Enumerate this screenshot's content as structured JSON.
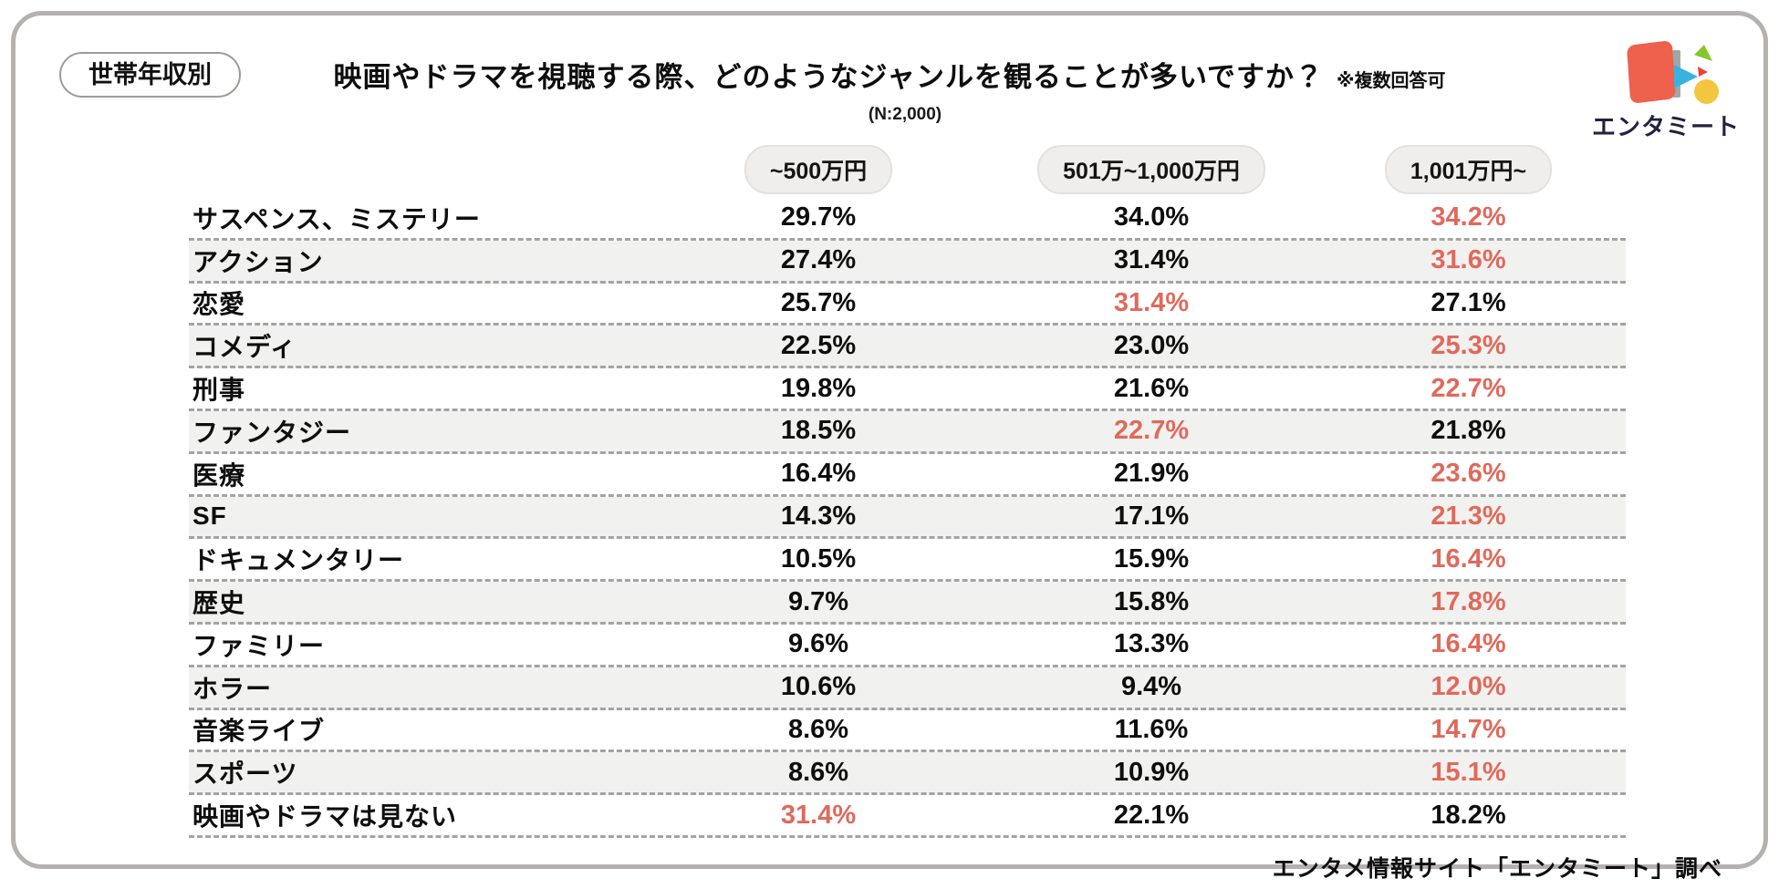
{
  "badge": "世帯年収別",
  "header": {
    "title": "映画やドラマを視聴する際、どのようなジャンルを観ることが多いですか？",
    "note": "※複数回答可",
    "sample": "(N:2,000)"
  },
  "logo": {
    "text": "エンタミート"
  },
  "table": {
    "columns": [
      "~500万円",
      "501万~1,000万円",
      "1,001万円~"
    ],
    "rows": [
      {
        "label": "サスペンス、ミステリー",
        "values": [
          "29.7%",
          "34.0%",
          "34.2%"
        ],
        "highlight": 2
      },
      {
        "label": "アクション",
        "values": [
          "27.4%",
          "31.4%",
          "31.6%"
        ],
        "highlight": 2
      },
      {
        "label": "恋愛",
        "values": [
          "25.7%",
          "31.4%",
          "27.1%"
        ],
        "highlight": 1
      },
      {
        "label": "コメディ",
        "values": [
          "22.5%",
          "23.0%",
          "25.3%"
        ],
        "highlight": 2
      },
      {
        "label": "刑事",
        "values": [
          "19.8%",
          "21.6%",
          "22.7%"
        ],
        "highlight": 2
      },
      {
        "label": "ファンタジー",
        "values": [
          "18.5%",
          "22.7%",
          "21.8%"
        ],
        "highlight": 1
      },
      {
        "label": "医療",
        "values": [
          "16.4%",
          "21.9%",
          "23.6%"
        ],
        "highlight": 2
      },
      {
        "label": "SF",
        "values": [
          "14.3%",
          "17.1%",
          "21.3%"
        ],
        "highlight": 2
      },
      {
        "label": "ドキュメンタリー",
        "values": [
          "10.5%",
          "15.9%",
          "16.4%"
        ],
        "highlight": 2
      },
      {
        "label": "歴史",
        "values": [
          "9.7%",
          "15.8%",
          "17.8%"
        ],
        "highlight": 2
      },
      {
        "label": "ファミリー",
        "values": [
          "9.6%",
          "13.3%",
          "16.4%"
        ],
        "highlight": 2
      },
      {
        "label": "ホラー",
        "values": [
          "10.6%",
          "9.4%",
          "12.0%"
        ],
        "highlight": 2
      },
      {
        "label": "音楽ライブ",
        "values": [
          "8.6%",
          "11.6%",
          "14.7%"
        ],
        "highlight": 2
      },
      {
        "label": "スポーツ",
        "values": [
          "8.6%",
          "10.9%",
          "15.1%"
        ],
        "highlight": 2
      },
      {
        "label": "映画やドラマは見ない",
        "values": [
          "31.4%",
          "22.1%",
          "18.2%"
        ],
        "highlight": 0
      }
    ]
  },
  "footer": "エンタメ情報サイト「エンタミート」調べ",
  "colors": {
    "highlight": "#e0695b",
    "stripe": "#f1f1ef",
    "card_border": "#b5b2ae",
    "logo_orange": "#ee614d",
    "logo_blue": "#3ab2e0",
    "logo_green": "#86c72c",
    "logo_yellow": "#f4c63f",
    "logo_red": "#e8433a"
  },
  "chart_data": {
    "type": "table",
    "title": "映画やドラマを視聴する際、どのようなジャンルを観ることが多いですか？",
    "note": "※複数回答可",
    "sample_size": "N:2,000",
    "group_by": "世帯年収別",
    "unit": "%",
    "categories": [
      "サスペンス、ミステリー",
      "アクション",
      "恋愛",
      "コメディ",
      "刑事",
      "ファンタジー",
      "医療",
      "SF",
      "ドキュメンタリー",
      "歴史",
      "ファミリー",
      "ホラー",
      "音楽ライブ",
      "スポーツ",
      "映画やドラマは見ない"
    ],
    "series": [
      {
        "name": "~500万円",
        "values": [
          29.7,
          27.4,
          25.7,
          22.5,
          19.8,
          18.5,
          16.4,
          14.3,
          10.5,
          9.7,
          9.6,
          10.6,
          8.6,
          8.6,
          31.4
        ]
      },
      {
        "name": "501万~1,000万円",
        "values": [
          34.0,
          31.4,
          31.4,
          23.0,
          21.6,
          22.7,
          21.9,
          17.1,
          15.9,
          15.8,
          13.3,
          9.4,
          11.6,
          10.9,
          22.1
        ]
      },
      {
        "name": "1,001万円~",
        "values": [
          34.2,
          31.6,
          27.1,
          25.3,
          22.7,
          21.8,
          23.6,
          21.3,
          16.4,
          17.8,
          16.4,
          12.0,
          14.7,
          15.1,
          18.2
        ]
      }
    ],
    "highlighted_max_per_row_series_index": [
      2,
      2,
      1,
      2,
      2,
      1,
      2,
      2,
      2,
      2,
      2,
      2,
      2,
      2,
      0
    ],
    "source": "エンタメ情報サイト「エンタミート」調べ"
  }
}
